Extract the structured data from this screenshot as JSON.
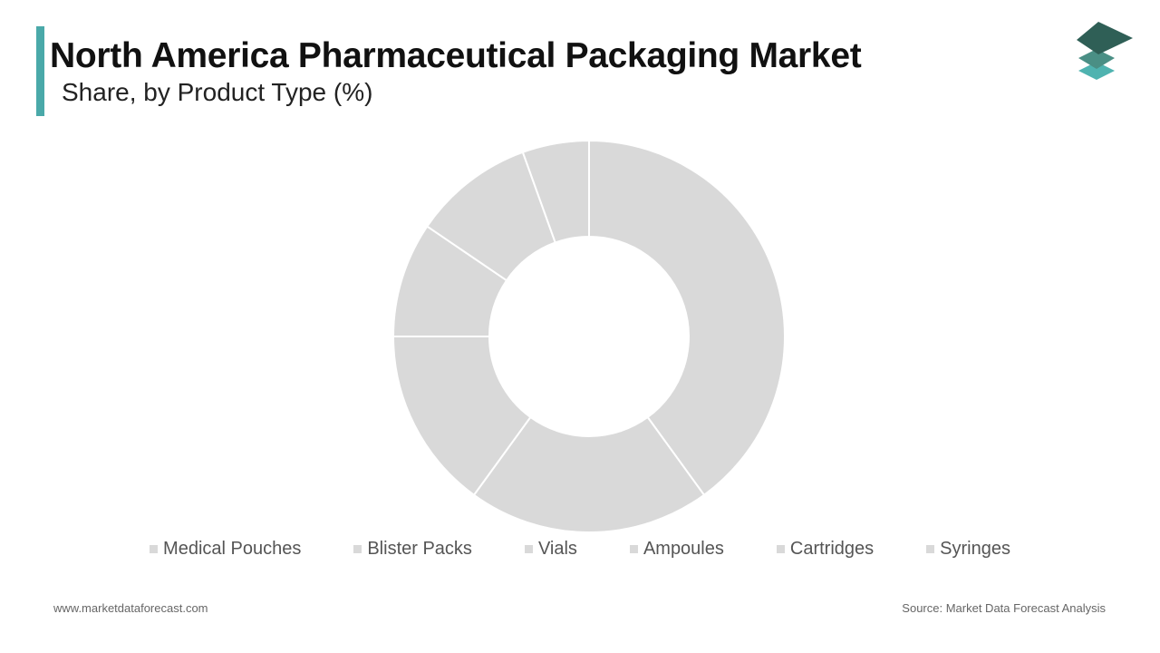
{
  "chart_data": {
    "type": "donut",
    "title": "North America Pharmaceutical Packaging Market",
    "subtitle": "Share, by Product Type (%)",
    "categories": [
      "Medical Pouches",
      "Blister Packs",
      "Vials",
      "Ampoules",
      "Cartridges",
      "Syringes"
    ],
    "values": [
      40,
      20,
      15,
      9.5,
      10,
      5.5
    ],
    "colors": [
      "#d9d9d9",
      "#d9d9d9",
      "#d9d9d9",
      "#d9d9d9",
      "#d9d9d9",
      "#d9d9d9"
    ],
    "website": "www.marketdataforecast.com",
    "source": "Source: Market Data Forecast Analysis"
  }
}
